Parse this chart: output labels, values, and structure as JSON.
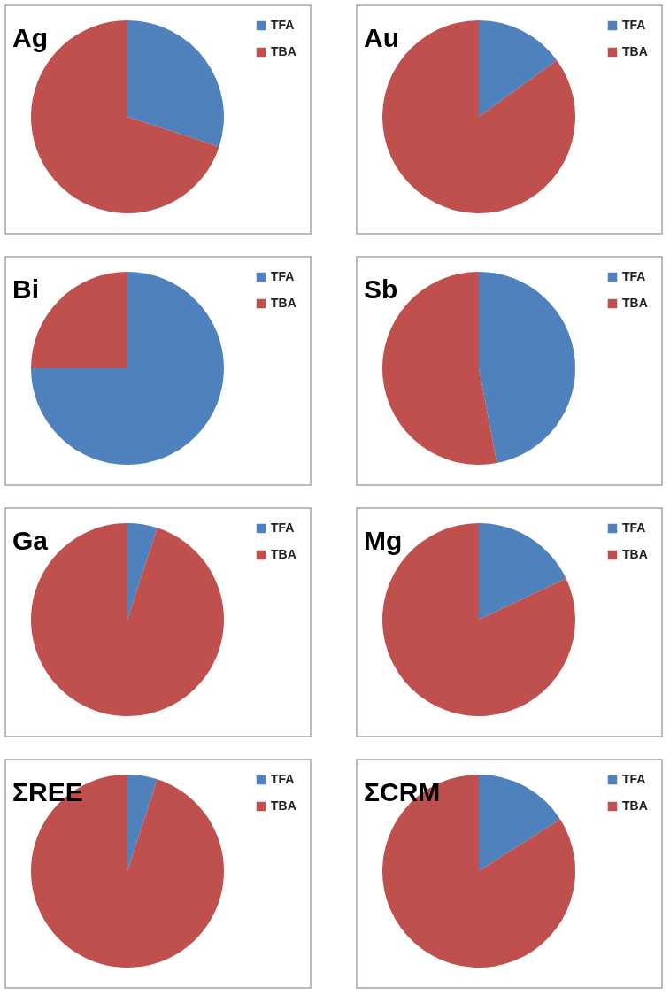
{
  "chart_data": [
    {
      "type": "pie",
      "title": "Ag",
      "categories": [
        "TFA",
        "TBA"
      ],
      "values": [
        30,
        70
      ],
      "colors": [
        "#4f81bd",
        "#c0504d"
      ],
      "legend": "top right"
    },
    {
      "type": "pie",
      "title": "Au",
      "categories": [
        "TFA",
        "TBA"
      ],
      "values": [
        15,
        85
      ],
      "colors": [
        "#4f81bd",
        "#c0504d"
      ],
      "legend": "top right"
    },
    {
      "type": "pie",
      "title": "Bi",
      "categories": [
        "TFA",
        "TBA"
      ],
      "values": [
        75,
        25
      ],
      "colors": [
        "#4f81bd",
        "#c0504d"
      ],
      "legend": "top right"
    },
    {
      "type": "pie",
      "title": "Sb",
      "categories": [
        "TFA",
        "TBA"
      ],
      "values": [
        47,
        53
      ],
      "colors": [
        "#4f81bd",
        "#c0504d"
      ],
      "legend": "top right"
    },
    {
      "type": "pie",
      "title": "Ga",
      "categories": [
        "TFA",
        "TBA"
      ],
      "values": [
        5,
        95
      ],
      "colors": [
        "#4f81bd",
        "#c0504d"
      ],
      "legend": "top right"
    },
    {
      "type": "pie",
      "title": "Mg",
      "categories": [
        "TFA",
        "TBA"
      ],
      "values": [
        18,
        82
      ],
      "colors": [
        "#4f81bd",
        "#c0504d"
      ],
      "legend": "top right"
    },
    {
      "type": "pie",
      "title": "ΣREE",
      "categories": [
        "TFA",
        "TBA"
      ],
      "values": [
        5,
        95
      ],
      "colors": [
        "#4f81bd",
        "#c0504d"
      ],
      "legend": "top right"
    },
    {
      "type": "pie",
      "title": "ΣCRM",
      "categories": [
        "TFA",
        "TBA"
      ],
      "values": [
        16,
        84
      ],
      "colors": [
        "#4f81bd",
        "#c0504d"
      ],
      "legend": "top right"
    }
  ]
}
